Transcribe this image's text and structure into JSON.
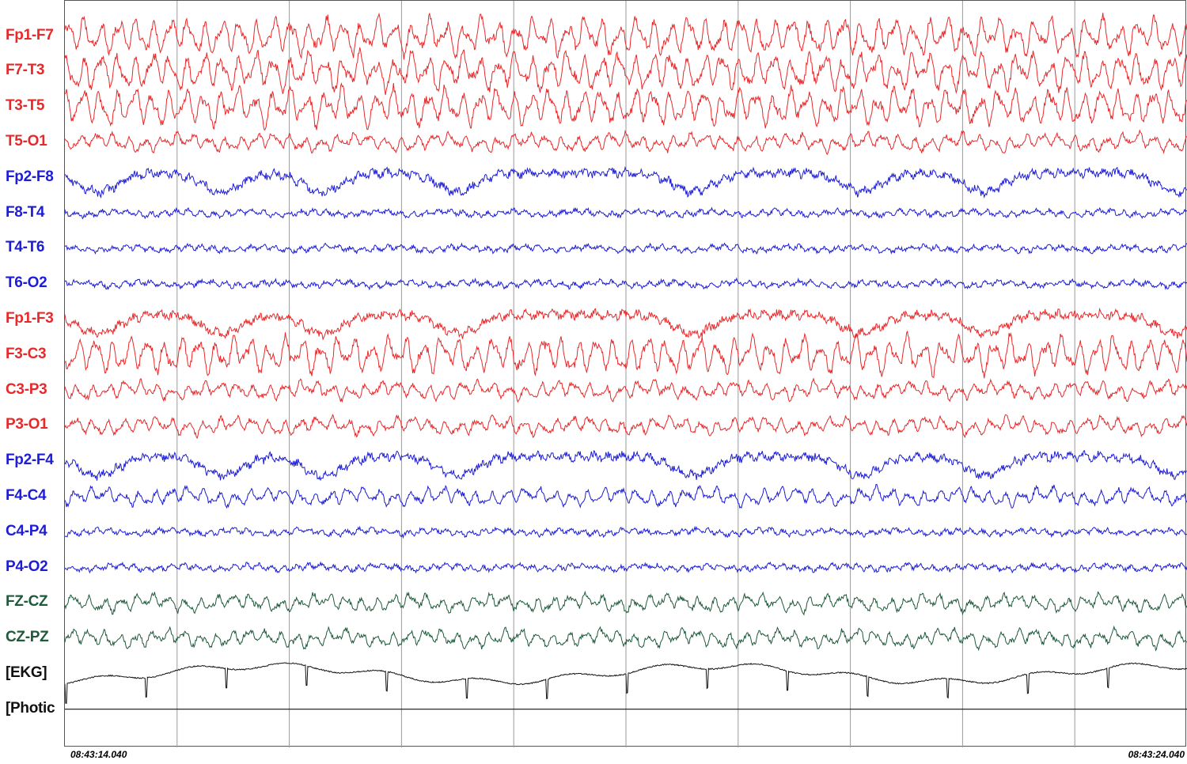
{
  "colors": {
    "left": "#e8292b",
    "right": "#1d1dd6",
    "midline": "#1f5a3a",
    "ekg": "#111111",
    "grid": "#9a9a9a"
  },
  "channels": [
    {
      "label": "Fp1-F7",
      "group": "left",
      "type": "high"
    },
    {
      "label": "F7-T3",
      "group": "left",
      "type": "high"
    },
    {
      "label": "T3-T5",
      "group": "left",
      "type": "high"
    },
    {
      "label": "T5-O1",
      "group": "left",
      "type": "mid"
    },
    {
      "label": "Fp2-F8",
      "group": "right",
      "type": "eye"
    },
    {
      "label": "F8-T4",
      "group": "right",
      "type": "low"
    },
    {
      "label": "T4-T6",
      "group": "right",
      "type": "low"
    },
    {
      "label": "T6-O2",
      "group": "right",
      "type": "low"
    },
    {
      "label": "Fp1-F3",
      "group": "left",
      "type": "eye"
    },
    {
      "label": "F3-C3",
      "group": "left",
      "type": "high"
    },
    {
      "label": "C3-P3",
      "group": "left",
      "type": "mid"
    },
    {
      "label": "P3-O1",
      "group": "left",
      "type": "mid"
    },
    {
      "label": "Fp2-F4",
      "group": "right",
      "type": "eye"
    },
    {
      "label": "F4-C4",
      "group": "right",
      "type": "mid"
    },
    {
      "label": "C4-P4",
      "group": "right",
      "type": "low"
    },
    {
      "label": "P4-O2",
      "group": "right",
      "type": "low"
    },
    {
      "label": "FZ-CZ",
      "group": "midline",
      "type": "mid"
    },
    {
      "label": "CZ-PZ",
      "group": "midline",
      "type": "mid"
    },
    {
      "label": "[EKG]",
      "group": "ekg",
      "type": "ekg"
    },
    {
      "label": "[Photic",
      "group": "ekg",
      "type": "flat"
    }
  ],
  "time_axis": {
    "start": "08:43:14.040",
    "end": "08:43:24.040",
    "seconds": 10
  }
}
